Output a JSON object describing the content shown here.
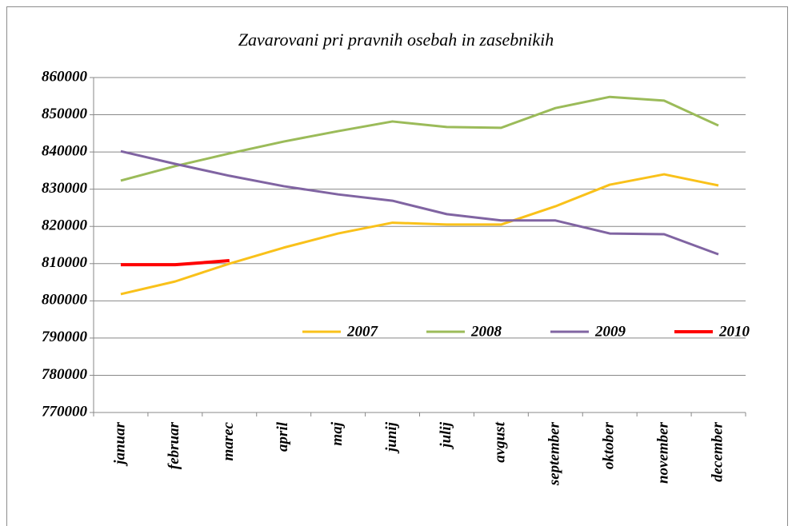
{
  "chart_data": {
    "type": "line",
    "title": "Zavarovani pri pravnih osebah in zasebnikih",
    "categories": [
      "januar",
      "februar",
      "marec",
      "april",
      "maj",
      "junij",
      "julij",
      "avgust",
      "september",
      "oktober",
      "november",
      "december"
    ],
    "series": [
      {
        "name": "2007",
        "color": "#f9c11a",
        "values": [
          801800,
          805200,
          810000,
          814300,
          818100,
          821000,
          820500,
          820500,
          825400,
          831200,
          834000,
          831000
        ]
      },
      {
        "name": "2008",
        "color": "#9bbb59",
        "values": [
          832300,
          836200,
          839600,
          842800,
          845600,
          848200,
          846700,
          846500,
          851800,
          854800,
          853800,
          847100
        ]
      },
      {
        "name": "2009",
        "color": "#8064a2",
        "values": [
          840200,
          836800,
          833600,
          830800,
          828600,
          826900,
          823300,
          821600,
          821600,
          818100,
          817900,
          812500
        ]
      },
      {
        "name": "2010",
        "color": "#ff0000",
        "values": [
          809700,
          809700,
          810800,
          null,
          null,
          null,
          null,
          null,
          null,
          null,
          null,
          null
        ]
      }
    ],
    "ylim": [
      770000,
      860000
    ],
    "yticks": [
      770000,
      780000,
      790000,
      800000,
      810000,
      820000,
      830000,
      840000,
      850000,
      860000
    ],
    "grid": true,
    "legend": "center"
  }
}
